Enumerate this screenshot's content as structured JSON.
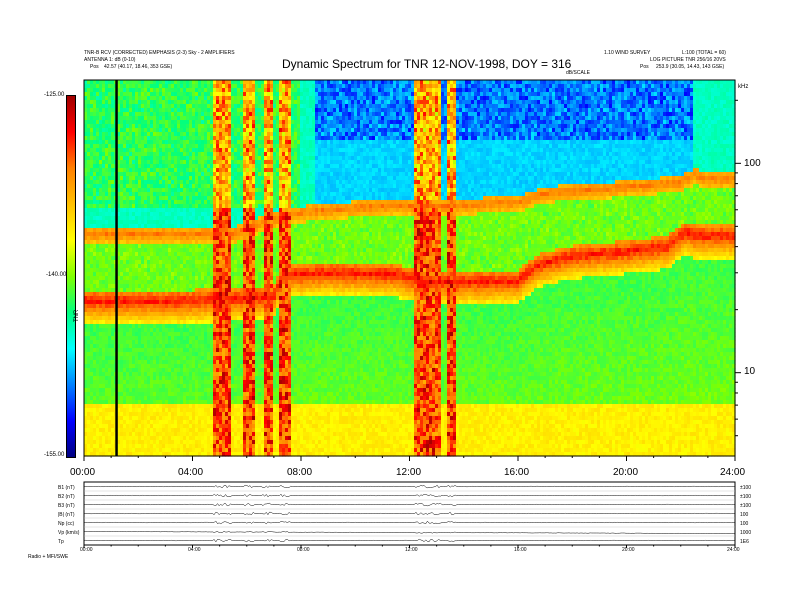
{
  "header": {
    "title": "Dynamic Spectrum for TNR 12-NOV-1998, DOY = 316",
    "meta_left_line1": "TNR-B  RCV (CORRECTED) EMPHASIS (2-3) Sky - 2 AMPLIFIERS",
    "meta_left_line2": "ANTENNA 1: dB (0-10)",
    "meta_left_pos_label": "Pos",
    "meta_left_pos_value": "42.57 (40.17, 18.46, 353 GSE)",
    "meta_right_line1": "1.10 WIND SURVEY",
    "meta_right_line2": "LOG PICTURE  TNR 256/16  20VS",
    "meta_right_corner": "L:100 (TOTAL = 60)",
    "meta_right_pos_label": "Pos",
    "meta_right_pos_value": "253.9 (30.05, 14.43, 143 GSE)",
    "dbscale_label": "dB/SCALE",
    "khz_label": "kHz"
  },
  "colorbar": {
    "label": "TNR",
    "stops": [
      "#000080",
      "#0000ff",
      "#0080ff",
      "#00ffff",
      "#00ff80",
      "#80ff00",
      "#ffff00",
      "#ffc000",
      "#ff8000",
      "#ff0000",
      "#a00000"
    ],
    "ticks": [
      "-125.00",
      "-140.00",
      "-155.00"
    ]
  },
  "bottom_panel": {
    "rows": [
      {
        "label": "B1 (nT)",
        "right": "±100"
      },
      {
        "label": "B2 (nT)",
        "right": "±100"
      },
      {
        "label": "B3 (nT)",
        "right": "±100"
      },
      {
        "label": "|B| (nT)",
        "right": "100"
      },
      {
        "label": "Np (cc)",
        "right": "100"
      },
      {
        "label": "Vp (km/s)",
        "right": "1000"
      },
      {
        "label": "Tp",
        "right": "1E6"
      }
    ],
    "x_ticks": [
      "00:00",
      "04:00",
      "08:00",
      "12:00",
      "16:00",
      "20:00",
      "24:00"
    ],
    "footer_left": "Radio + MFI/SWE"
  },
  "chart_data": {
    "type": "heatmap",
    "title": "Dynamic Spectrum for TNR 12-NOV-1998, DOY = 316",
    "x_unit": "UT hours",
    "x_range": [
      0,
      24
    ],
    "x_tick_values": [
      0,
      4,
      8,
      12,
      16,
      20,
      24
    ],
    "x_tick_labels": [
      "00:00",
      "04:00",
      "08:00",
      "12:00",
      "16:00",
      "20:00",
      "24:00"
    ],
    "y_scale": "log",
    "y_unit": "kHz",
    "y_range": [
      4,
      250
    ],
    "y_ticks": [
      10,
      100
    ],
    "color_range_db": [
      -155,
      -125
    ],
    "color_ticks": [
      -125,
      -140,
      -155
    ],
    "features": {
      "lower_band_khz": [
        [
          0,
          22
        ],
        [
          3.5,
          22
        ],
        [
          7.0,
          23
        ],
        [
          7.3,
          29
        ],
        [
          9,
          30
        ],
        [
          11.5,
          29.5
        ],
        [
          12.5,
          27
        ],
        [
          16.0,
          27.5
        ],
        [
          16.8,
          33
        ],
        [
          18.0,
          36
        ],
        [
          20.0,
          38
        ],
        [
          21.5,
          40
        ],
        [
          22.2,
          47
        ],
        [
          22.5,
          45
        ],
        [
          24,
          45
        ]
      ],
      "upper_band_khz": [
        [
          0,
          46
        ],
        [
          5.5,
          46
        ],
        [
          7.5,
          57
        ],
        [
          9,
          60
        ],
        [
          11.5,
          63
        ],
        [
          12.8,
          62
        ],
        [
          16.0,
          65
        ],
        [
          17.0,
          72
        ],
        [
          19.5,
          76
        ],
        [
          21.0,
          79
        ],
        [
          22.0,
          81
        ],
        [
          22.5,
          88
        ],
        [
          23,
          84
        ],
        [
          24,
          84
        ]
      ],
      "enhanced_bursts_hours": [
        [
          4.8,
          5.4
        ],
        [
          5.9,
          6.3
        ],
        [
          6.6,
          6.95
        ],
        [
          7.2,
          7.6
        ],
        [
          12.2,
          13.2
        ],
        [
          13.4,
          13.7
        ]
      ],
      "quiet_hours": [
        [
          8.5,
          22.5
        ]
      ],
      "marker_hour": 1.2
    }
  }
}
